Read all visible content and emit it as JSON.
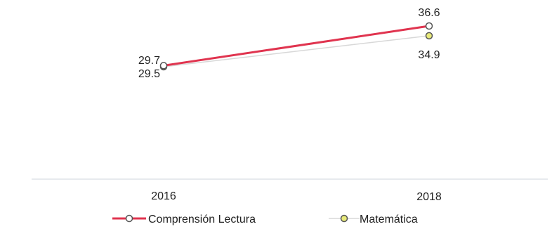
{
  "chart_data": {
    "type": "line",
    "x": [
      "2016",
      "2018"
    ],
    "series": [
      {
        "name": "Comprensión Lectura",
        "values": [
          29.7,
          36.6
        ],
        "labels": [
          "29.7",
          "36.6"
        ],
        "color": "#e0344f"
      },
      {
        "name": "Matemática",
        "values": [
          29.5,
          34.9
        ],
        "labels": [
          "29.5",
          "34.9"
        ],
        "color": "#d8d8d8",
        "marker_fill": "#e8ea7a"
      }
    ],
    "title": "",
    "xlabel": "",
    "ylabel": "",
    "grid": false,
    "legend_position": "bottom",
    "baseline_color": "#cfd6dd"
  }
}
